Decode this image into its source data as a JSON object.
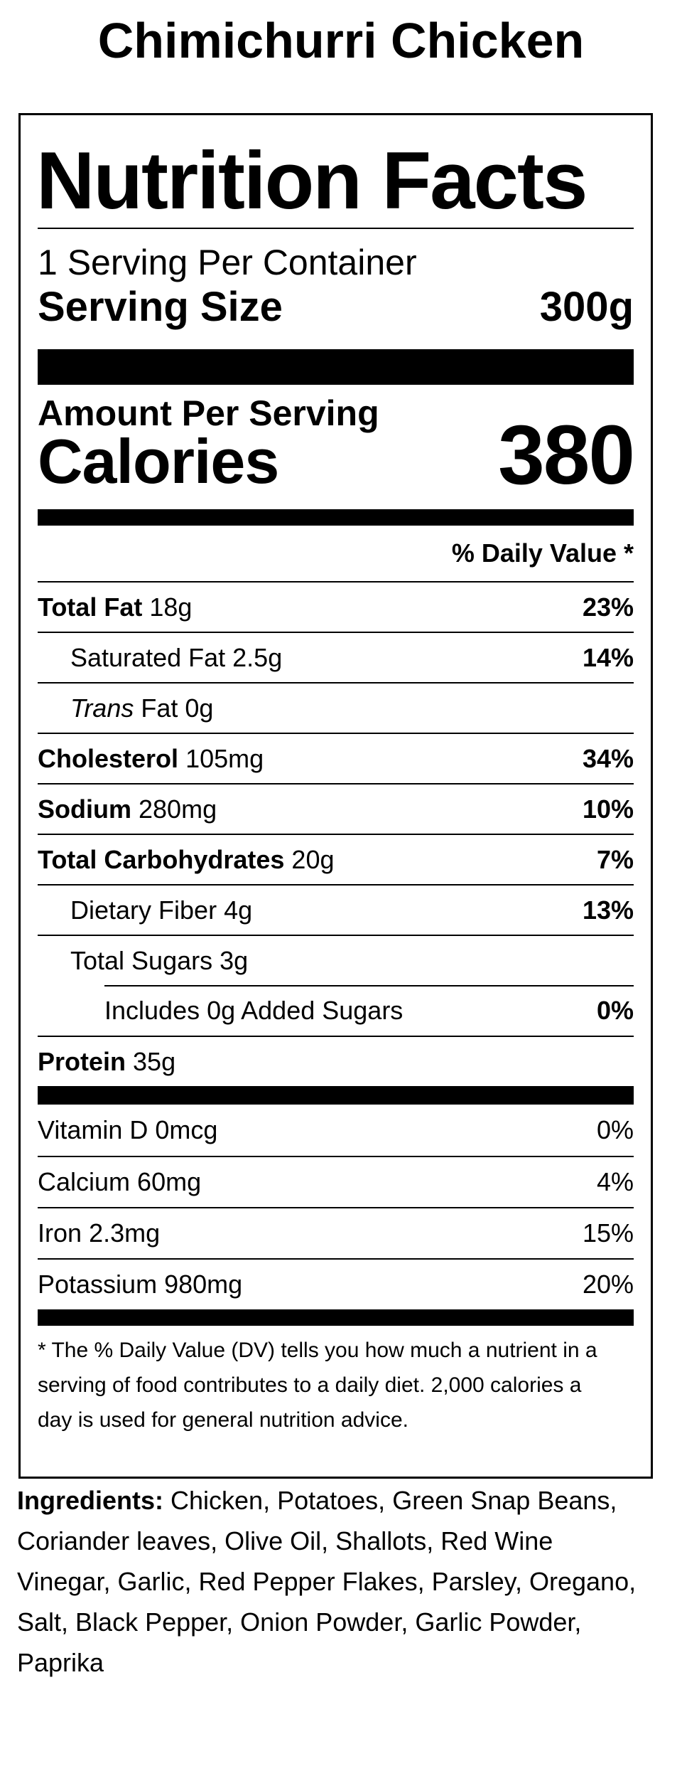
{
  "product": {
    "title": "Chimichurri Chicken"
  },
  "label": {
    "heading": "Nutrition Facts",
    "servings_per_container": "1 Serving Per Container",
    "serving_size_label": "Serving Size",
    "serving_size_value": "300g",
    "amount_per_serving": "Amount Per Serving",
    "calories_label": "Calories",
    "calories_value": "380",
    "daily_value_header": "% Daily Value *",
    "nutrients": [
      {
        "name": "Total Fat",
        "amount": "18g",
        "dv": "23%"
      },
      {
        "name": "Saturated Fat",
        "amount": "2.5g",
        "dv": "14%"
      },
      {
        "name_italic": "Trans",
        "name": "Fat",
        "amount": "0g",
        "dv": ""
      },
      {
        "name": "Cholesterol",
        "amount": "105mg",
        "dv": "34%"
      },
      {
        "name": "Sodium",
        "amount": "280mg",
        "dv": "10%"
      },
      {
        "name": "Total Carbohydrates",
        "amount": "20g",
        "dv": "7%"
      },
      {
        "name": "Dietary Fiber",
        "amount": "4g",
        "dv": "13%"
      },
      {
        "name": "Total Sugars",
        "amount": "3g",
        "dv": ""
      },
      {
        "name": "Includes 0g Added Sugars",
        "amount": "",
        "dv": "0%"
      },
      {
        "name": "Protein",
        "amount": "35g",
        "dv": ""
      }
    ],
    "vitamins": [
      {
        "name": "Vitamin D",
        "amount": "0mcg",
        "dv": "0%"
      },
      {
        "name": "Calcium",
        "amount": "60mg",
        "dv": "4%"
      },
      {
        "name": "Iron",
        "amount": "2.3mg",
        "dv": "15%"
      },
      {
        "name": "Potassium",
        "amount": "980mg",
        "dv": "20%"
      }
    ],
    "footnote_line1": "* The % Daily Value (DV) tells you how much a nutrient in a",
    "footnote_line2": "serving of food contributes to a daily diet. 2,000 calories a",
    "footnote_line3": "day is used for general nutrition advice."
  },
  "ingredients": {
    "label": "Ingredients:",
    "line1": " Chicken, Potatoes, Green Snap Beans,",
    "line2": "Coriander leaves, Olive Oil, Shallots, Red Wine",
    "line3": "Vinegar, Garlic, Red Pepper Flakes, Parsley, Oregano,",
    "line4": "Salt, Black Pepper, Onion Powder, Garlic Powder,",
    "line5": "Paprika"
  }
}
